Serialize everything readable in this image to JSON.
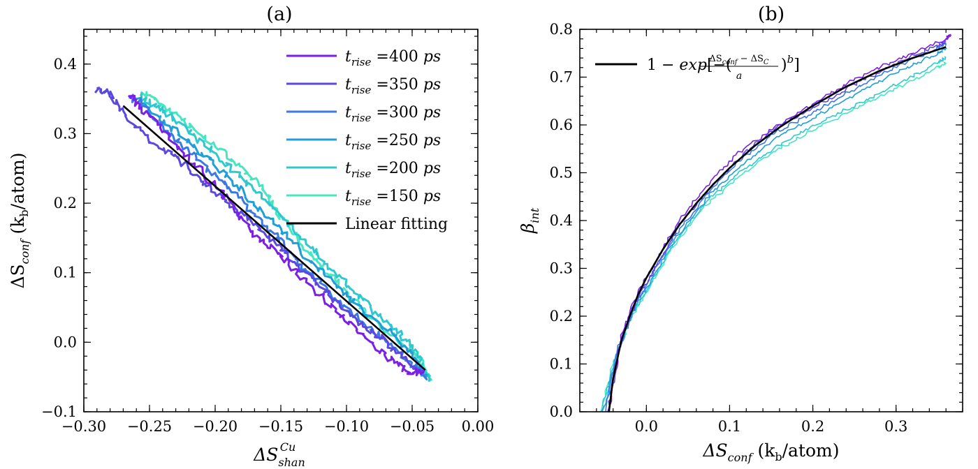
{
  "chart_data": [
    {
      "type": "line",
      "title": "(a)",
      "xlabel": "ΔS_shan^Cu",
      "ylabel": "ΔS_conf (k_b/atom)",
      "xlim": [
        -0.3,
        0.0
      ],
      "ylim": [
        -0.1,
        0.45
      ],
      "xticks": [
        -0.3,
        -0.25,
        -0.2,
        -0.15,
        -0.1,
        -0.05,
        0.0
      ],
      "yticks": [
        -0.1,
        0.0,
        0.1,
        0.2,
        0.3,
        0.4
      ],
      "xtick_labels": [
        "−0.30",
        "−0.25",
        "−0.20",
        "−0.15",
        "−0.10",
        "−0.05",
        "0.00"
      ],
      "ytick_labels": [
        "−0.1",
        "0.0",
        "0.1",
        "0.2",
        "0.3",
        "0.4"
      ],
      "grid": false,
      "legend_position": "top-right",
      "series": [
        {
          "name": "t_rise =400 ps",
          "color": "#7b1fe8",
          "x": [
            -0.265,
            -0.25,
            -0.23,
            -0.21,
            -0.19,
            -0.17,
            -0.15,
            -0.13,
            -0.11,
            -0.09,
            -0.07,
            -0.055,
            -0.042
          ],
          "y": [
            0.355,
            0.325,
            0.285,
            0.245,
            0.205,
            0.155,
            0.125,
            0.085,
            0.05,
            0.015,
            -0.02,
            -0.04,
            -0.045
          ]
        },
        {
          "name": "t_rise =350 ps",
          "color": "#5a48e0",
          "x": [
            -0.29,
            -0.28,
            -0.27,
            -0.25,
            -0.23,
            -0.21,
            -0.19,
            -0.17,
            -0.15,
            -0.13,
            -0.11,
            -0.09,
            -0.07,
            -0.05,
            -0.042
          ],
          "y": [
            0.362,
            0.358,
            0.33,
            0.29,
            0.268,
            0.232,
            0.198,
            0.17,
            0.135,
            0.095,
            0.062,
            0.028,
            0.002,
            -0.035,
            -0.045
          ]
        },
        {
          "name": "t_rise =300 ps",
          "color": "#3c78e4",
          "x": [
            -0.265,
            -0.25,
            -0.23,
            -0.21,
            -0.19,
            -0.17,
            -0.15,
            -0.13,
            -0.11,
            -0.09,
            -0.07,
            -0.05,
            -0.04
          ],
          "y": [
            0.355,
            0.33,
            0.292,
            0.256,
            0.222,
            0.18,
            0.145,
            0.103,
            0.067,
            0.032,
            0.002,
            -0.03,
            -0.05
          ]
        },
        {
          "name": "t_rise =250 ps",
          "color": "#1f9ed8",
          "x": [
            -0.26,
            -0.245,
            -0.225,
            -0.205,
            -0.185,
            -0.165,
            -0.145,
            -0.125,
            -0.105,
            -0.085,
            -0.065,
            -0.05,
            -0.04
          ],
          "y": [
            0.35,
            0.328,
            0.296,
            0.262,
            0.228,
            0.19,
            0.152,
            0.112,
            0.075,
            0.04,
            0.01,
            -0.02,
            -0.05
          ]
        },
        {
          "name": "t_rise =200 ps",
          "color": "#2ec9cf",
          "x": [
            -0.258,
            -0.24,
            -0.22,
            -0.2,
            -0.18,
            -0.16,
            -0.14,
            -0.12,
            -0.1,
            -0.08,
            -0.06,
            -0.045,
            -0.038
          ],
          "y": [
            0.355,
            0.334,
            0.302,
            0.27,
            0.236,
            0.2,
            0.162,
            0.122,
            0.085,
            0.047,
            0.013,
            -0.02,
            -0.055
          ]
        },
        {
          "name": "t_rise =150 ps",
          "color": "#46e6c2",
          "x": [
            -0.255,
            -0.24,
            -0.22,
            -0.2,
            -0.18,
            -0.16,
            -0.15,
            -0.13,
            -0.11,
            -0.09,
            -0.07,
            -0.05,
            -0.035
          ],
          "y": [
            0.36,
            0.342,
            0.312,
            0.282,
            0.252,
            0.212,
            0.18,
            0.132,
            0.092,
            0.052,
            0.017,
            -0.012,
            -0.055
          ]
        },
        {
          "name": "Linear fitting",
          "color": "#000000",
          "x": [
            -0.27,
            -0.04
          ],
          "y": [
            0.34,
            -0.04
          ]
        }
      ]
    },
    {
      "type": "line",
      "title": "(b)",
      "xlabel": "ΔS_conf (k_b/atom)",
      "ylabel": "β_int",
      "xlim": [
        -0.08,
        0.38
      ],
      "ylim": [
        0.0,
        0.8
      ],
      "xticks": [
        0.0,
        0.1,
        0.2,
        0.3
      ],
      "yticks": [
        0.0,
        0.1,
        0.2,
        0.3,
        0.4,
        0.5,
        0.6,
        0.7,
        0.8
      ],
      "xtick_labels": [
        "0.0",
        "0.1",
        "0.2",
        "0.3"
      ],
      "ytick_labels": [
        "0.0",
        "0.1",
        "0.2",
        "0.3",
        "0.4",
        "0.5",
        "0.6",
        "0.7",
        "0.8"
      ],
      "grid": false,
      "legend_position": "top-left",
      "series": [
        {
          "name": "1 − exp[−((ΔS_conf − ΔS_C)/a)^b]",
          "color": "#000000",
          "x": [
            -0.045,
            -0.04,
            -0.03,
            -0.02,
            -0.01,
            0.0,
            0.02,
            0.04,
            0.06,
            0.08,
            0.1,
            0.13,
            0.16,
            0.2,
            0.24,
            0.28,
            0.32,
            0.36
          ],
          "y": [
            0.0,
            0.07,
            0.15,
            0.2,
            0.245,
            0.28,
            0.34,
            0.392,
            0.436,
            0.475,
            0.51,
            0.556,
            0.595,
            0.64,
            0.68,
            0.713,
            0.74,
            0.763
          ]
        },
        {
          "color": "#7b1fe8",
          "x": [
            -0.045,
            -0.03,
            -0.01,
            0.01,
            0.04,
            0.08,
            0.12,
            0.16,
            0.2,
            0.24,
            0.28,
            0.32,
            0.36,
            0.365
          ],
          "y": [
            0.0,
            0.16,
            0.25,
            0.31,
            0.4,
            0.49,
            0.555,
            0.6,
            0.645,
            0.685,
            0.72,
            0.75,
            0.78,
            0.79
          ]
        },
        {
          "color": "#5a48e0",
          "x": [
            -0.047,
            -0.03,
            -0.01,
            0.01,
            0.04,
            0.08,
            0.12,
            0.16,
            0.2,
            0.24,
            0.28,
            0.32,
            0.35,
            0.36
          ],
          "y": [
            0.0,
            0.15,
            0.24,
            0.3,
            0.39,
            0.475,
            0.545,
            0.6,
            0.635,
            0.675,
            0.71,
            0.745,
            0.765,
            0.775
          ]
        },
        {
          "color": "#3c78e4",
          "x": [
            -0.05,
            -0.035,
            -0.015,
            0.005,
            0.035,
            0.075,
            0.115,
            0.155,
            0.195,
            0.235,
            0.275,
            0.315,
            0.35,
            0.36
          ],
          "y": [
            0.0,
            0.13,
            0.22,
            0.28,
            0.37,
            0.46,
            0.53,
            0.585,
            0.62,
            0.66,
            0.7,
            0.735,
            0.76,
            0.77
          ]
        },
        {
          "color": "#1f9ed8",
          "x": [
            -0.052,
            -0.036,
            -0.016,
            0.004,
            0.034,
            0.074,
            0.114,
            0.154,
            0.194,
            0.234,
            0.274,
            0.314,
            0.35,
            0.36
          ],
          "y": [
            0.0,
            0.12,
            0.21,
            0.27,
            0.36,
            0.45,
            0.515,
            0.57,
            0.61,
            0.645,
            0.685,
            0.72,
            0.75,
            0.76
          ]
        },
        {
          "color": "#2ec9cf",
          "x": [
            -0.054,
            -0.038,
            -0.018,
            0.002,
            0.032,
            0.072,
            0.112,
            0.152,
            0.192,
            0.232,
            0.272,
            0.312,
            0.35,
            0.36
          ],
          "y": [
            0.0,
            0.11,
            0.2,
            0.26,
            0.35,
            0.44,
            0.5,
            0.55,
            0.59,
            0.625,
            0.66,
            0.695,
            0.73,
            0.74
          ]
        },
        {
          "color": "#46e6c2",
          "x": [
            -0.055,
            -0.04,
            -0.02,
            0.0,
            0.03,
            0.07,
            0.11,
            0.15,
            0.19,
            0.23,
            0.27,
            0.31,
            0.35,
            0.36
          ],
          "y": [
            0.0,
            0.1,
            0.19,
            0.25,
            0.34,
            0.43,
            0.49,
            0.54,
            0.58,
            0.615,
            0.65,
            0.685,
            0.72,
            0.73
          ]
        }
      ]
    }
  ]
}
